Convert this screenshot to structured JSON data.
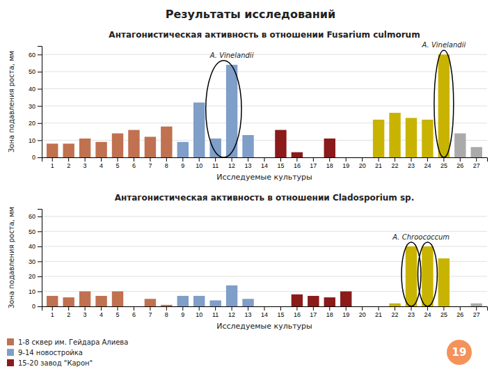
{
  "title": "Результаты исследований",
  "annotations": [
    "19"
  ],
  "chart_data": [
    {
      "type": "bar",
      "title": "Антагонистическая активность в отношении Fusarium culmorum",
      "xlabel": "Исследуемые культуры",
      "ylabel": "Зона подавления роста, мм",
      "categories": [
        1,
        2,
        3,
        4,
        5,
        6,
        7,
        8,
        9,
        10,
        11,
        12,
        13,
        14,
        15,
        16,
        17,
        18,
        19,
        20,
        21,
        22,
        23,
        24,
        25,
        26,
        27
      ],
      "series": [
        {
          "color": "#c0714f",
          "values": [
            8,
            8,
            11,
            9,
            14,
            16,
            12,
            18,
            null,
            null,
            null,
            null,
            null,
            null,
            null,
            null,
            null,
            null,
            null,
            null,
            null,
            null,
            null,
            null,
            null,
            null,
            null
          ]
        },
        {
          "color": "#7f9ec8",
          "values": [
            null,
            null,
            null,
            null,
            null,
            null,
            null,
            null,
            9,
            32,
            11,
            54,
            13,
            0,
            null,
            null,
            null,
            null,
            null,
            null,
            null,
            null,
            null,
            null,
            null,
            null,
            null
          ]
        },
        {
          "color": "#8b1a1a",
          "values": [
            null,
            null,
            null,
            null,
            null,
            null,
            null,
            null,
            null,
            null,
            null,
            null,
            null,
            null,
            16,
            3,
            0,
            11,
            0,
            0,
            null,
            null,
            null,
            null,
            null,
            null,
            null
          ]
        },
        {
          "color": "#c8b400",
          "values": [
            null,
            null,
            null,
            null,
            null,
            null,
            null,
            null,
            null,
            null,
            null,
            null,
            null,
            null,
            null,
            null,
            null,
            null,
            null,
            null,
            22,
            26,
            23,
            22,
            60,
            null,
            null
          ]
        },
        {
          "color": "#aaaaaa",
          "values": [
            null,
            null,
            null,
            null,
            null,
            null,
            null,
            null,
            null,
            null,
            null,
            null,
            null,
            null,
            null,
            null,
            null,
            null,
            null,
            null,
            null,
            null,
            null,
            null,
            null,
            14,
            6
          ]
        }
      ],
      "ylim": [
        0,
        65
      ],
      "yticks": [
        0,
        10,
        20,
        30,
        40,
        50,
        60
      ],
      "grid": true,
      "annotations": [
        "A. Vinelandii",
        "A. Vinelandii"
      ]
    },
    {
      "type": "bar",
      "title": "Антагонистическая активность в отношении Cladosporium sp.",
      "xlabel": "Исследуемые культуры",
      "ylabel": "Зона подавления роста, мм",
      "categories": [
        1,
        2,
        3,
        4,
        5,
        6,
        7,
        8,
        9,
        10,
        11,
        12,
        13,
        14,
        15,
        16,
        17,
        18,
        19,
        20,
        21,
        22,
        23,
        24,
        25,
        26,
        27
      ],
      "series": [
        {
          "name": "1-8 сквер им. Гейдара Алиева",
          "color": "#c0714f",
          "values": [
            7,
            6,
            10,
            7,
            10,
            0,
            5,
            1,
            null,
            null,
            null,
            null,
            null,
            null,
            null,
            null,
            null,
            null,
            null,
            null,
            null,
            null,
            null,
            null,
            null,
            null,
            null
          ]
        },
        {
          "name": "9-14 новостройка",
          "color": "#7f9ec8",
          "values": [
            null,
            null,
            null,
            null,
            null,
            null,
            null,
            null,
            7,
            7,
            4,
            14,
            5,
            0,
            null,
            null,
            null,
            null,
            null,
            null,
            null,
            null,
            null,
            null,
            null,
            null,
            null
          ]
        },
        {
          "name": "15-20 завод \"Карон\"",
          "color": "#8b1a1a",
          "values": [
            null,
            null,
            null,
            null,
            null,
            null,
            null,
            null,
            null,
            null,
            null,
            null,
            null,
            null,
            0,
            8,
            7,
            6,
            10,
            0,
            null,
            null,
            null,
            null,
            null,
            null,
            null
          ]
        },
        {
          "color": "#c8b400",
          "values": [
            null,
            null,
            null,
            null,
            null,
            null,
            null,
            null,
            null,
            null,
            null,
            null,
            null,
            null,
            null,
            null,
            null,
            null,
            null,
            null,
            0,
            2,
            40,
            40,
            32,
            null,
            null
          ]
        },
        {
          "color": "#aaaaaa",
          "values": [
            null,
            null,
            null,
            null,
            null,
            null,
            null,
            null,
            null,
            null,
            null,
            null,
            null,
            null,
            null,
            null,
            null,
            null,
            null,
            null,
            null,
            null,
            null,
            null,
            null,
            0,
            2
          ]
        }
      ],
      "ylim": [
        0,
        65
      ],
      "yticks": [
        0,
        10,
        20,
        30,
        40,
        50,
        60
      ],
      "grid": true,
      "legend": "lower left",
      "annotations": [
        "A. Chroococcum"
      ]
    }
  ]
}
